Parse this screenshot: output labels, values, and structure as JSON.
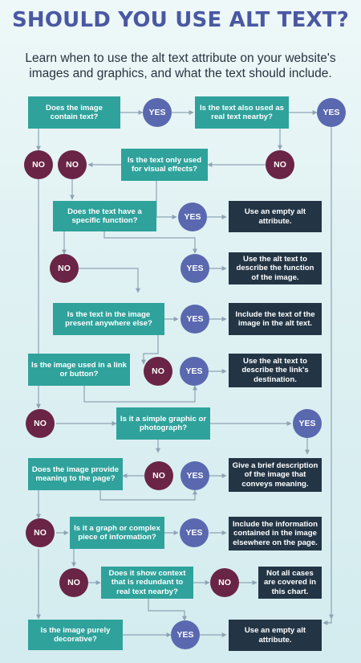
{
  "title": "SHOULD YOU USE ALT TEXT?",
  "subtitle": "Learn when to use the alt text attribute on your website's images and graphics, and what the text should include.",
  "answers": {
    "yes": "YES",
    "no": "NO"
  },
  "questions": {
    "contains_text": "Does the image contain text?",
    "text_nearby": "Is the text also used as real text nearby?",
    "visual_effects": "Is the text only used for visual effects?",
    "specific_function": "Does the text have a specific function?",
    "present_elsewhere": "Is the text in the image present anywhere else?",
    "link_or_button": "Is the image used in a link or button?",
    "simple_graphic": "Is it a simple graphic or photograph?",
    "provide_meaning": "Does the image provide meaning to the page?",
    "graph_complex": "Is it a graph or complex piece of information?",
    "show_context": "Does it show context that is redundant to real text nearby?",
    "purely_decorative": "Is the image purely decorative?"
  },
  "outcomes": {
    "empty_alt_1": "Use an empty alt attribute.",
    "describe_function": "Use the alt text to describe the function of the image.",
    "include_text": "Include the text of the image in the alt text.",
    "describe_destination": "Use the alt text to describe the link's destination.",
    "brief_description": "Give a brief description of the image that conveys meaning.",
    "include_information": "Include the information contained in the image elsewhere on the page.",
    "not_covered": "Not all cases are covered in this chart.",
    "empty_alt_2": "Use an empty alt attribute."
  },
  "colors": {
    "question": "#2fa29b",
    "outcome": "#233545",
    "yes": "#5a68af",
    "no": "#6a2445",
    "title": "#4a58a3",
    "connector": "#8fa3b3"
  }
}
